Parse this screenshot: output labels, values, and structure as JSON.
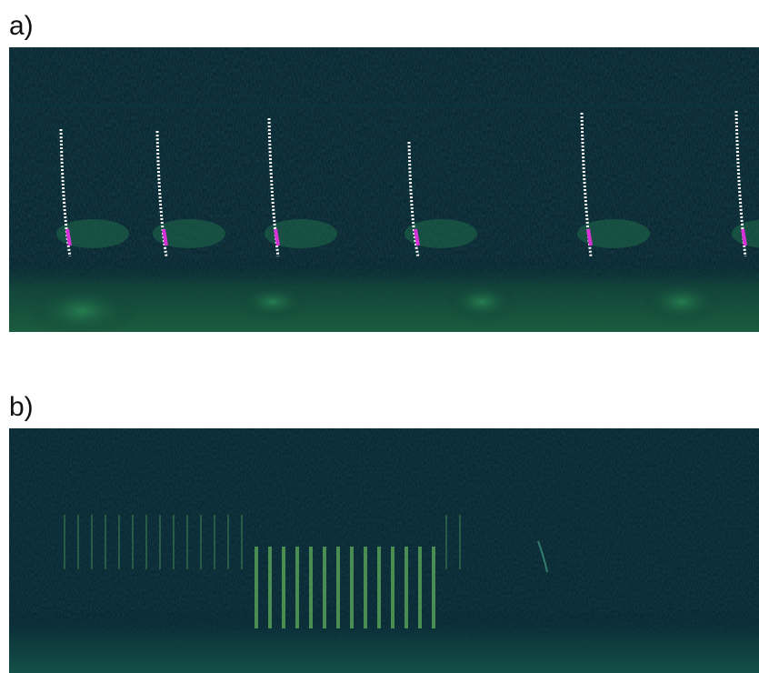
{
  "panels": [
    {
      "label": "a)",
      "description_icon": "spectrogram-image"
    },
    {
      "label": "b)",
      "description_icon": "spectrogram-image"
    }
  ],
  "colors": {
    "background": "#031b26",
    "noise_band": "#1f6b45",
    "call_trace": "#ffffff",
    "call_highlight": "#d633d6",
    "pulse": "#5fae5a"
  }
}
